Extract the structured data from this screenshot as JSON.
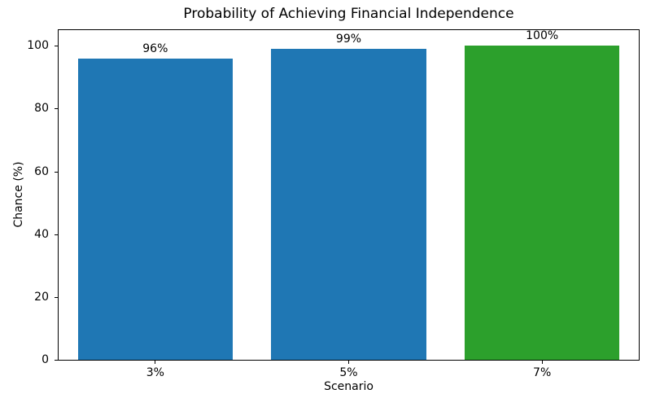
{
  "chart_data": {
    "type": "bar",
    "title": "Probability of Achieving Financial Independence",
    "xlabel": "Scenario",
    "ylabel": "Chance (%)",
    "categories": [
      "3%",
      "5%",
      "7%"
    ],
    "values": [
      96,
      99,
      100
    ],
    "value_labels": [
      "96%",
      "99%",
      "100%"
    ],
    "bar_colors": [
      "#1f77b4",
      "#1f77b4",
      "#2ca02c"
    ],
    "yticks": [
      0,
      20,
      40,
      60,
      80,
      100
    ],
    "ylim": [
      0,
      105
    ],
    "bar_width_ratio": 0.8,
    "grid": false,
    "legend_position": "none",
    "text_color": "#000000",
    "background_color": "#ffffff"
  }
}
